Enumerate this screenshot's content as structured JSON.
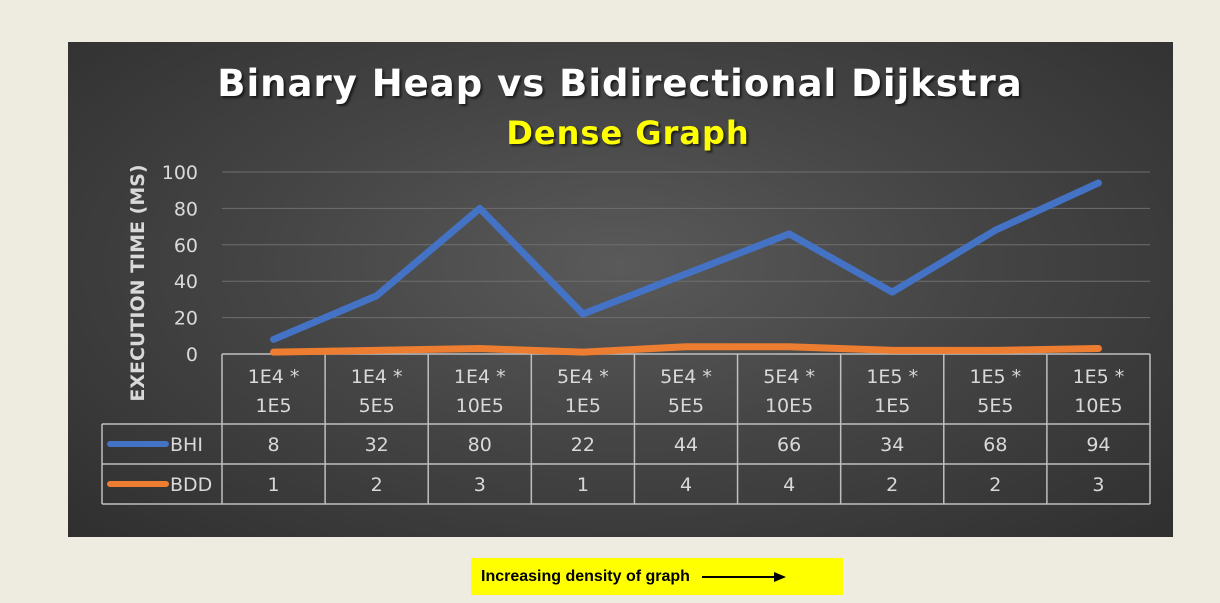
{
  "chart_data": {
    "type": "line",
    "title": "Binary Heap vs Bidirectional Dijkstra",
    "subtitle": "Dense Graph",
    "ylabel": "EXECUTION TIME (MS)",
    "xlabel": "",
    "ylim": [
      0,
      100
    ],
    "yticks": [
      "0",
      "20",
      "40",
      "60",
      "80",
      "100"
    ],
    "grid": true,
    "data_table": true,
    "categories": [
      [
        "1E4 *",
        "1E5"
      ],
      [
        "1E4 *",
        "5E5"
      ],
      [
        "1E4 *",
        "10E5"
      ],
      [
        "5E4 *",
        "1E5"
      ],
      [
        "5E4 *",
        "5E5"
      ],
      [
        "5E4 *",
        "10E5"
      ],
      [
        "1E5 *",
        "1E5"
      ],
      [
        "1E5 *",
        "5E5"
      ],
      [
        "1E5 *",
        "10E5"
      ]
    ],
    "series": [
      {
        "name": "BHI",
        "color": "#4472c4",
        "values": [
          8,
          32,
          80,
          22,
          44,
          66,
          34,
          68,
          94
        ]
      },
      {
        "name": "BDD",
        "color": "#ed7d31",
        "values": [
          1,
          2,
          3,
          1,
          4,
          4,
          2,
          2,
          3
        ]
      }
    ]
  },
  "footnote": {
    "text": "Increasing density of graph",
    "background": "#ffff00",
    "icon": "right-arrow-icon"
  }
}
